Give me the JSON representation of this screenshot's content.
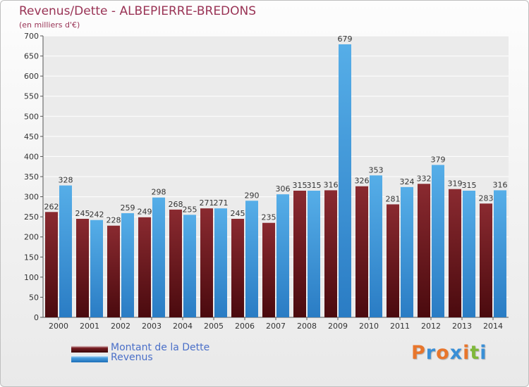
{
  "chart_data": {
    "type": "bar",
    "title": "Revenus/Dette - ALBEPIERRE-BREDONS",
    "subtitle": "(en milliers d'€)",
    "categories": [
      "2000",
      "2001",
      "2002",
      "2003",
      "2004",
      "2005",
      "2006",
      "2007",
      "2008",
      "2009",
      "2010",
      "2011",
      "2012",
      "2013",
      "2014"
    ],
    "series": [
      {
        "name": "Montant de la Dette",
        "color": "#7a1f24",
        "values": [
          262,
          245,
          228,
          249,
          268,
          271,
          245,
          235,
          315,
          316,
          326,
          281,
          332,
          319,
          283
        ]
      },
      {
        "name": "Revenus",
        "color": "#4a9fe0",
        "values": [
          328,
          242,
          259,
          298,
          255,
          271,
          290,
          306,
          315,
          679,
          353,
          324,
          379,
          315,
          316
        ]
      }
    ],
    "ylim": [
      0,
      700
    ],
    "yticks": [
      0,
      50,
      100,
      150,
      200,
      250,
      300,
      350,
      400,
      450,
      500,
      550,
      600,
      650,
      700
    ],
    "grid": true,
    "legend": "bottom-left"
  },
  "legend": {
    "dette_label": "Montant de la Dette",
    "revenus_label": "Revenus"
  },
  "logo": {
    "text": "Proxiti",
    "colors": [
      "#e8762c",
      "#3a8fd6",
      "#e8762c",
      "#3a8fd6",
      "#e8762c",
      "#7fb83a",
      "#3a8fd6"
    ]
  }
}
